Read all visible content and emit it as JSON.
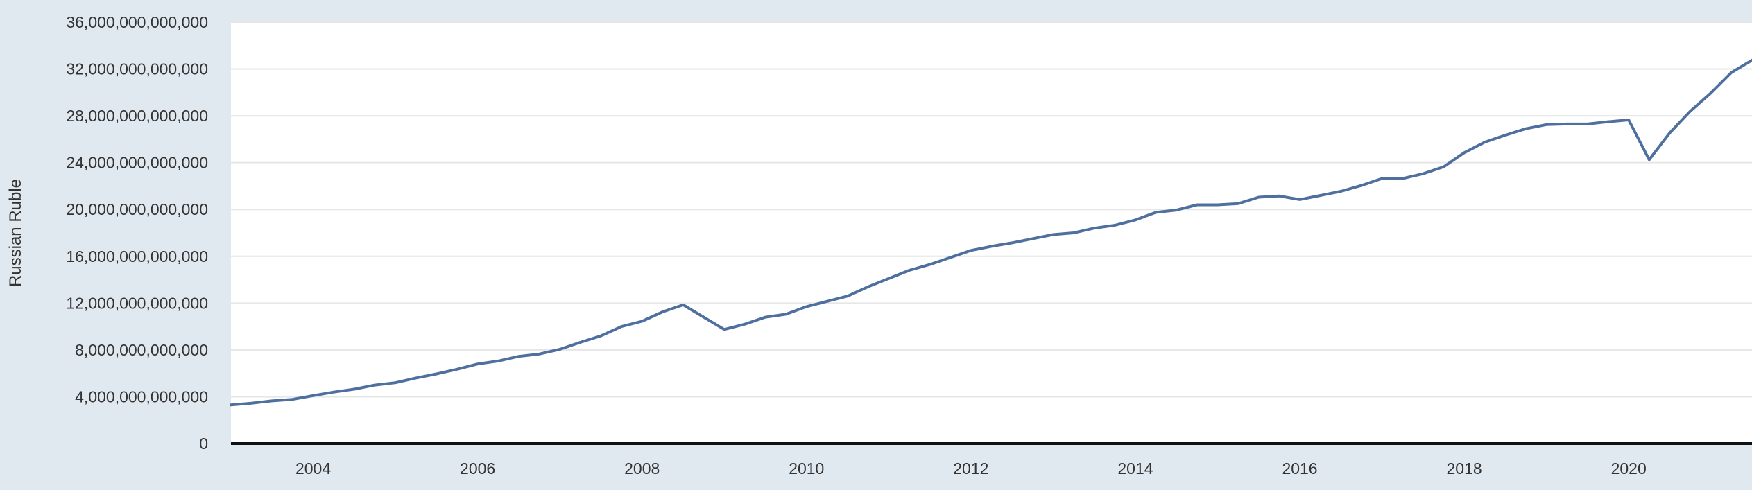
{
  "chart_data": {
    "type": "line",
    "title": "",
    "xlabel": "",
    "ylabel": "Russian Ruble",
    "xlim": [
      2003.0,
      2021.5
    ],
    "ylim": [
      0,
      36000000000000
    ],
    "yticks": [
      0,
      4000000000000,
      8000000000000,
      12000000000000,
      16000000000000,
      20000000000000,
      24000000000000,
      28000000000000,
      32000000000000,
      36000000000000
    ],
    "ytick_labels": [
      "0",
      "4,000,000,000,000",
      "8,000,000,000,000",
      "12,000,000,000,000",
      "16,000,000,000,000",
      "20,000,000,000,000",
      "24,000,000,000,000",
      "28,000,000,000,000",
      "32,000,000,000,000",
      "36,000,000,000,000"
    ],
    "xticks": [
      2004,
      2006,
      2008,
      2010,
      2012,
      2014,
      2016,
      2018,
      2020
    ],
    "xtick_labels": [
      "2004",
      "2006",
      "2008",
      "2010",
      "2012",
      "2014",
      "2016",
      "2018",
      "2020"
    ],
    "grid": true,
    "legend": "none",
    "colors": {
      "line": "#4f6f9f",
      "background": "#e1e9f0",
      "plot_area": "#ffffff",
      "gridline": "#e6e6e6",
      "axis": "#111111"
    },
    "series": [
      {
        "x": [
          2003.0,
          2003.25,
          2003.5,
          2003.75,
          2004.0,
          2004.25,
          2004.5,
          2004.75,
          2005.0,
          2005.25,
          2005.5,
          2005.75,
          2006.0,
          2006.25,
          2006.5,
          2006.75,
          2007.0,
          2007.25,
          2007.5,
          2007.75,
          2008.0,
          2008.25,
          2008.5,
          2008.75,
          2009.0,
          2009.25,
          2009.5,
          2009.75,
          2010.0,
          2010.25,
          2010.5,
          2010.75,
          2011.0,
          2011.25,
          2011.5,
          2011.75,
          2012.0,
          2012.25,
          2012.5,
          2012.75,
          2013.0,
          2013.25,
          2013.5,
          2013.75,
          2014.0,
          2014.25,
          2014.5,
          2014.75,
          2015.0,
          2015.25,
          2015.5,
          2015.75,
          2016.0,
          2016.25,
          2016.5,
          2016.75,
          2017.0,
          2017.25,
          2017.5,
          2017.75,
          2018.0,
          2018.25,
          2018.5,
          2018.75,
          2019.0,
          2019.25,
          2019.5,
          2019.75,
          2020.0,
          2020.25,
          2020.5,
          2020.75,
          2021.0,
          2021.25,
          2021.5
        ],
        "values": [
          3300000000000,
          3450000000000,
          3650000000000,
          3780000000000,
          4100000000000,
          4400000000000,
          4650000000000,
          5000000000000,
          5200000000000,
          5600000000000,
          5950000000000,
          6350000000000,
          6800000000000,
          7050000000000,
          7450000000000,
          7650000000000,
          8050000000000,
          8650000000000,
          9200000000000,
          10000000000000,
          10450000000000,
          11250000000000,
          11850000000000,
          10800000000000,
          9750000000000,
          10200000000000,
          10800000000000,
          11050000000000,
          11700000000000,
          12150000000000,
          12600000000000,
          13400000000000,
          14100000000000,
          14800000000000,
          15300000000000,
          15900000000000,
          16500000000000,
          16850000000000,
          17150000000000,
          17500000000000,
          17850000000000,
          18000000000000,
          18400000000000,
          18650000000000,
          19100000000000,
          19750000000000,
          19950000000000,
          20400000000000,
          20400000000000,
          20500000000000,
          21050000000000,
          21150000000000,
          20850000000000,
          21200000000000,
          21550000000000,
          22050000000000,
          22650000000000,
          22650000000000,
          23050000000000,
          23650000000000,
          24850000000000,
          25750000000000,
          26350000000000,
          26900000000000,
          27250000000000,
          27300000000000,
          27300000000000,
          27500000000000,
          27650000000000,
          24250000000000,
          26550000000000,
          28400000000000,
          29950000000000,
          31700000000000,
          32750000000000
        ]
      }
    ]
  }
}
